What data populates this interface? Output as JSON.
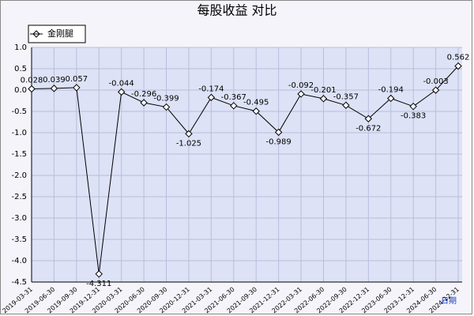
{
  "chart_data": {
    "type": "line",
    "title": "每股收益 对比",
    "x_label": "日期",
    "categories": [
      "2019-03-31",
      "2019-06-30",
      "2019-09-30",
      "2019-12-31",
      "2020-03-31",
      "2020-06-30",
      "2020-09-30",
      "2020-12-31",
      "2021-03-31",
      "2021-06-30",
      "2021-09-30",
      "2021-12-31",
      "2022-03-31",
      "2022-06-30",
      "2022-09-30",
      "2022-12-31",
      "2023-06-30",
      "2023-12-31",
      "2024-06-30",
      "2024-12-31"
    ],
    "series": [
      {
        "name": "金刚腿",
        "color": "#000000",
        "values": [
          0.028,
          0.039,
          0.057,
          -4.311,
          -0.044,
          -0.296,
          -0.399,
          -1.025,
          -0.174,
          -0.367,
          -0.495,
          -0.989,
          -0.092,
          -0.201,
          -0.357,
          -0.672,
          -0.194,
          -0.383,
          -0.003,
          0.562
        ]
      }
    ],
    "ylim": [
      -4.5,
      1
    ],
    "yticks": [
      {
        "value": 1,
        "label": "1.0"
      },
      0.5,
      {
        "value": 0,
        "label": "0.0"
      },
      -0.5,
      {
        "value": -1,
        "label": "-1.0"
      },
      -1.5,
      {
        "value": -2,
        "label": "-2.0"
      },
      -2.5,
      {
        "value": -3,
        "label": "-3.0"
      },
      -3.5,
      {
        "value": -4,
        "label": "-4.0"
      },
      -4.5
    ],
    "grid": true,
    "legend": "top-left"
  }
}
